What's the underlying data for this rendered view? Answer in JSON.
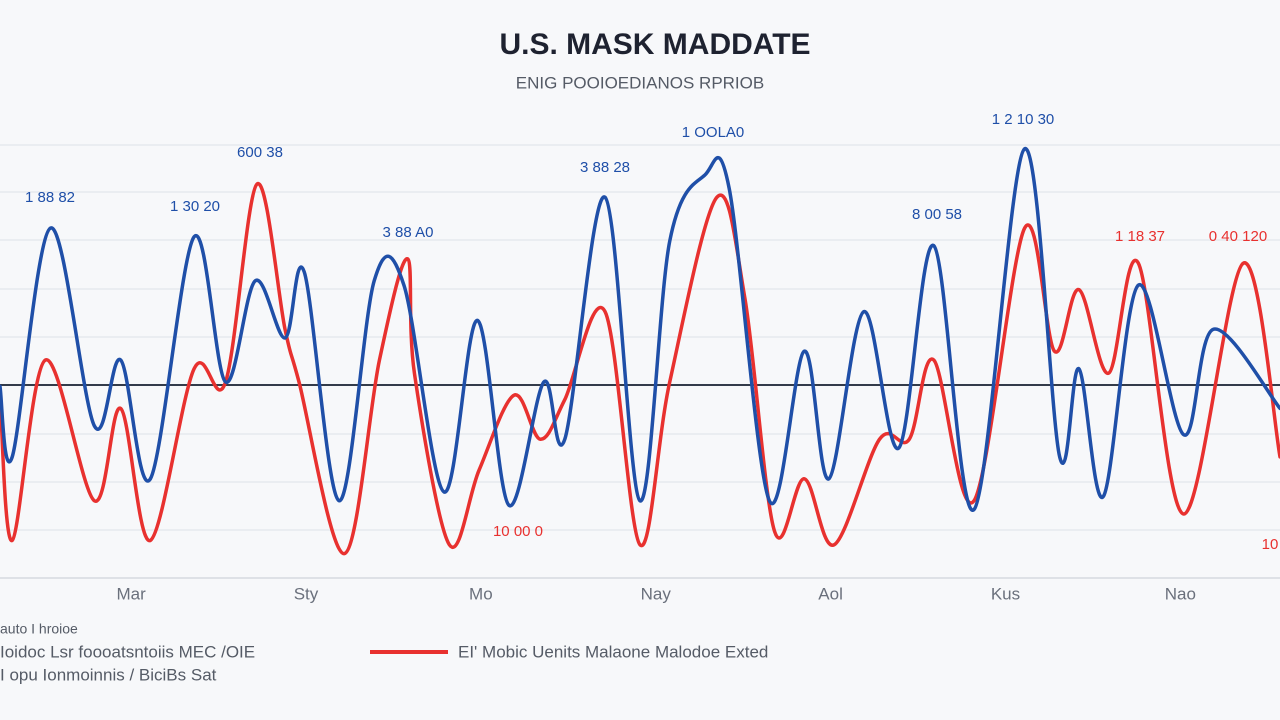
{
  "chart_data": {
    "type": "line",
    "title": "U.S. MASK MADDATE",
    "subtitle": "ENIG POOIOEDIANOS RPRIOB",
    "xlim": [
      -0.75,
      6.57
    ],
    "ylim": [
      0,
      100
    ],
    "xticks": [
      {
        "value": 0,
        "label": "Mar"
      },
      {
        "value": 1,
        "label": "Sty"
      },
      {
        "value": 2,
        "label": "Mo"
      },
      {
        "value": 3,
        "label": "Nay"
      },
      {
        "value": 4,
        "label": "Aol"
      },
      {
        "value": 5,
        "label": "Kus"
      },
      {
        "value": 6,
        "label": "Nao"
      }
    ],
    "series": [
      {
        "name": "Ioidoc Lsr foooatsntoiis MEC /OIE",
        "color": "#1f4fa8",
        "x": [
          -0.75,
          -0.68,
          -0.46,
          -0.21,
          -0.06,
          0.11,
          0.36,
          0.54,
          0.71,
          0.88,
          0.99,
          1.19,
          1.39,
          1.56,
          1.79,
          1.98,
          2.16,
          2.36,
          2.48,
          2.71,
          2.91,
          3.08,
          3.28,
          3.42,
          3.65,
          3.85,
          3.99,
          4.19,
          4.39,
          4.59,
          4.82,
          5.11,
          5.31,
          5.42,
          5.56,
          5.76,
          6.02,
          6.19,
          6.57
        ],
        "values": [
          44,
          28,
          80,
          35,
          50,
          23,
          78,
          45,
          68,
          55,
          70,
          18,
          68,
          67,
          20,
          59,
          17,
          45,
          32,
          87,
          18,
          77,
          92,
          89,
          18,
          52,
          23,
          61,
          30,
          76,
          16,
          98,
          28,
          48,
          19,
          67,
          33,
          57,
          39
        ]
      },
      {
        "name": "EI' Mobic Uenits Malaone Malodoe Exted",
        "color": "#e8312f",
        "x": [
          -0.75,
          -0.68,
          -0.49,
          -0.21,
          -0.06,
          0.11,
          0.36,
          0.54,
          0.72,
          0.88,
          0.96,
          1.22,
          1.42,
          1.58,
          1.62,
          1.82,
          1.99,
          2.19,
          2.34,
          2.48,
          2.71,
          2.91,
          3.08,
          3.35,
          3.51,
          3.68,
          3.85,
          4.02,
          4.28,
          4.45,
          4.59,
          4.82,
          5.11,
          5.28,
          5.42,
          5.59,
          5.76,
          6.02,
          6.36,
          6.57
        ],
        "values": [
          42,
          9,
          50,
          18,
          39,
          9,
          48,
          45,
          90,
          57,
          45,
          6,
          50,
          73,
          47,
          8,
          25,
          42,
          32,
          41,
          61,
          8,
          45,
          87,
          64,
          11,
          23,
          8,
          32,
          32,
          50,
          18,
          80,
          52,
          66,
          47,
          72,
          15,
          72,
          28
        ]
      }
    ],
    "legend_notes": [
      "auto I hroioe",
      "I opu Ionmoinnis / BiciBs Sat"
    ],
    "annotations": [
      {
        "text": "1 88 82",
        "color": "#1f4fa8"
      },
      {
        "text": "600 38",
        "color": "#1f4fa8"
      },
      {
        "text": "1 30 20",
        "color": "#1f4fa8"
      },
      {
        "text": "3 88 A0",
        "color": "#1f4fa8"
      },
      {
        "text": "3 88 28",
        "color": "#1f4fa8"
      },
      {
        "text": "1 OOLA0",
        "color": "#1f4fa8"
      },
      {
        "text": "1 2 10 30",
        "color": "#1f4fa8"
      },
      {
        "text": "8 00 58",
        "color": "#1f4fa8"
      },
      {
        "text": "1 18 37",
        "color": "#e8312f"
      },
      {
        "text": "0 40 120",
        "color": "#e8312f"
      },
      {
        "text": "10 00 0",
        "color": "#e8312f"
      },
      {
        "text": "10",
        "color": "#e8312f"
      }
    ]
  }
}
